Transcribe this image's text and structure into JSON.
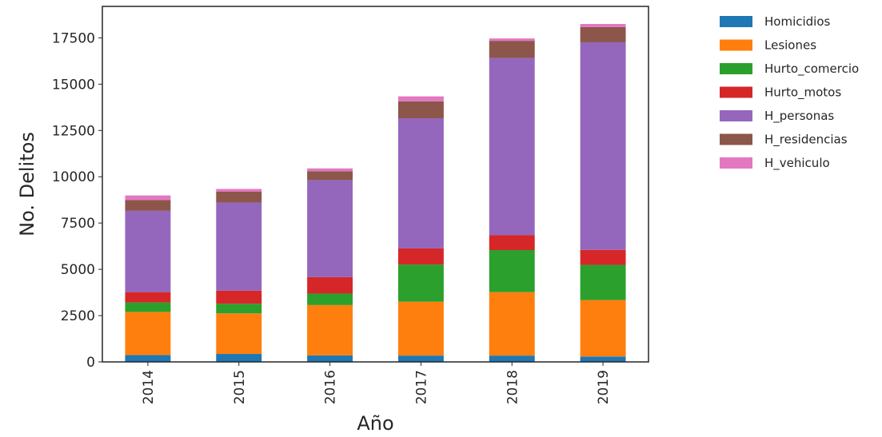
{
  "chart_data": {
    "type": "bar",
    "stacked": true,
    "title": "",
    "xlabel": "Año",
    "ylabel": "No. Delitos",
    "categories": [
      "2014",
      "2015",
      "2016",
      "2017",
      "2018",
      "2019"
    ],
    "ylim": [
      0,
      19200
    ],
    "yticks": [
      "0",
      "2500",
      "5000",
      "7500",
      "10000",
      "12500",
      "15000",
      "17500"
    ],
    "grid": false,
    "legend_position": "outside-right",
    "series": [
      {
        "name": "Homicidios",
        "color": "#1f77b4",
        "values": [
          370,
          430,
          350,
          340,
          340,
          290
        ]
      },
      {
        "name": "Lesiones",
        "color": "#ff7f0e",
        "values": [
          2330,
          2190,
          2720,
          2910,
          3430,
          3050
        ]
      },
      {
        "name": "Hurto_comercio",
        "color": "#2ca02c",
        "values": [
          510,
          520,
          620,
          2010,
          2270,
          1900
        ]
      },
      {
        "name": "Hurto_motos",
        "color": "#d62728",
        "values": [
          560,
          710,
          890,
          870,
          800,
          810
        ]
      },
      {
        "name": "H_personas",
        "color": "#9467bd",
        "values": [
          4390,
          4760,
          5240,
          7030,
          9570,
          11210
        ]
      },
      {
        "name": "H_residencias",
        "color": "#8c564b",
        "values": [
          580,
          580,
          480,
          910,
          930,
          820
        ]
      },
      {
        "name": "H_vehiculo",
        "color": "#e377c2",
        "values": [
          250,
          150,
          150,
          270,
          130,
          170
        ]
      }
    ]
  }
}
